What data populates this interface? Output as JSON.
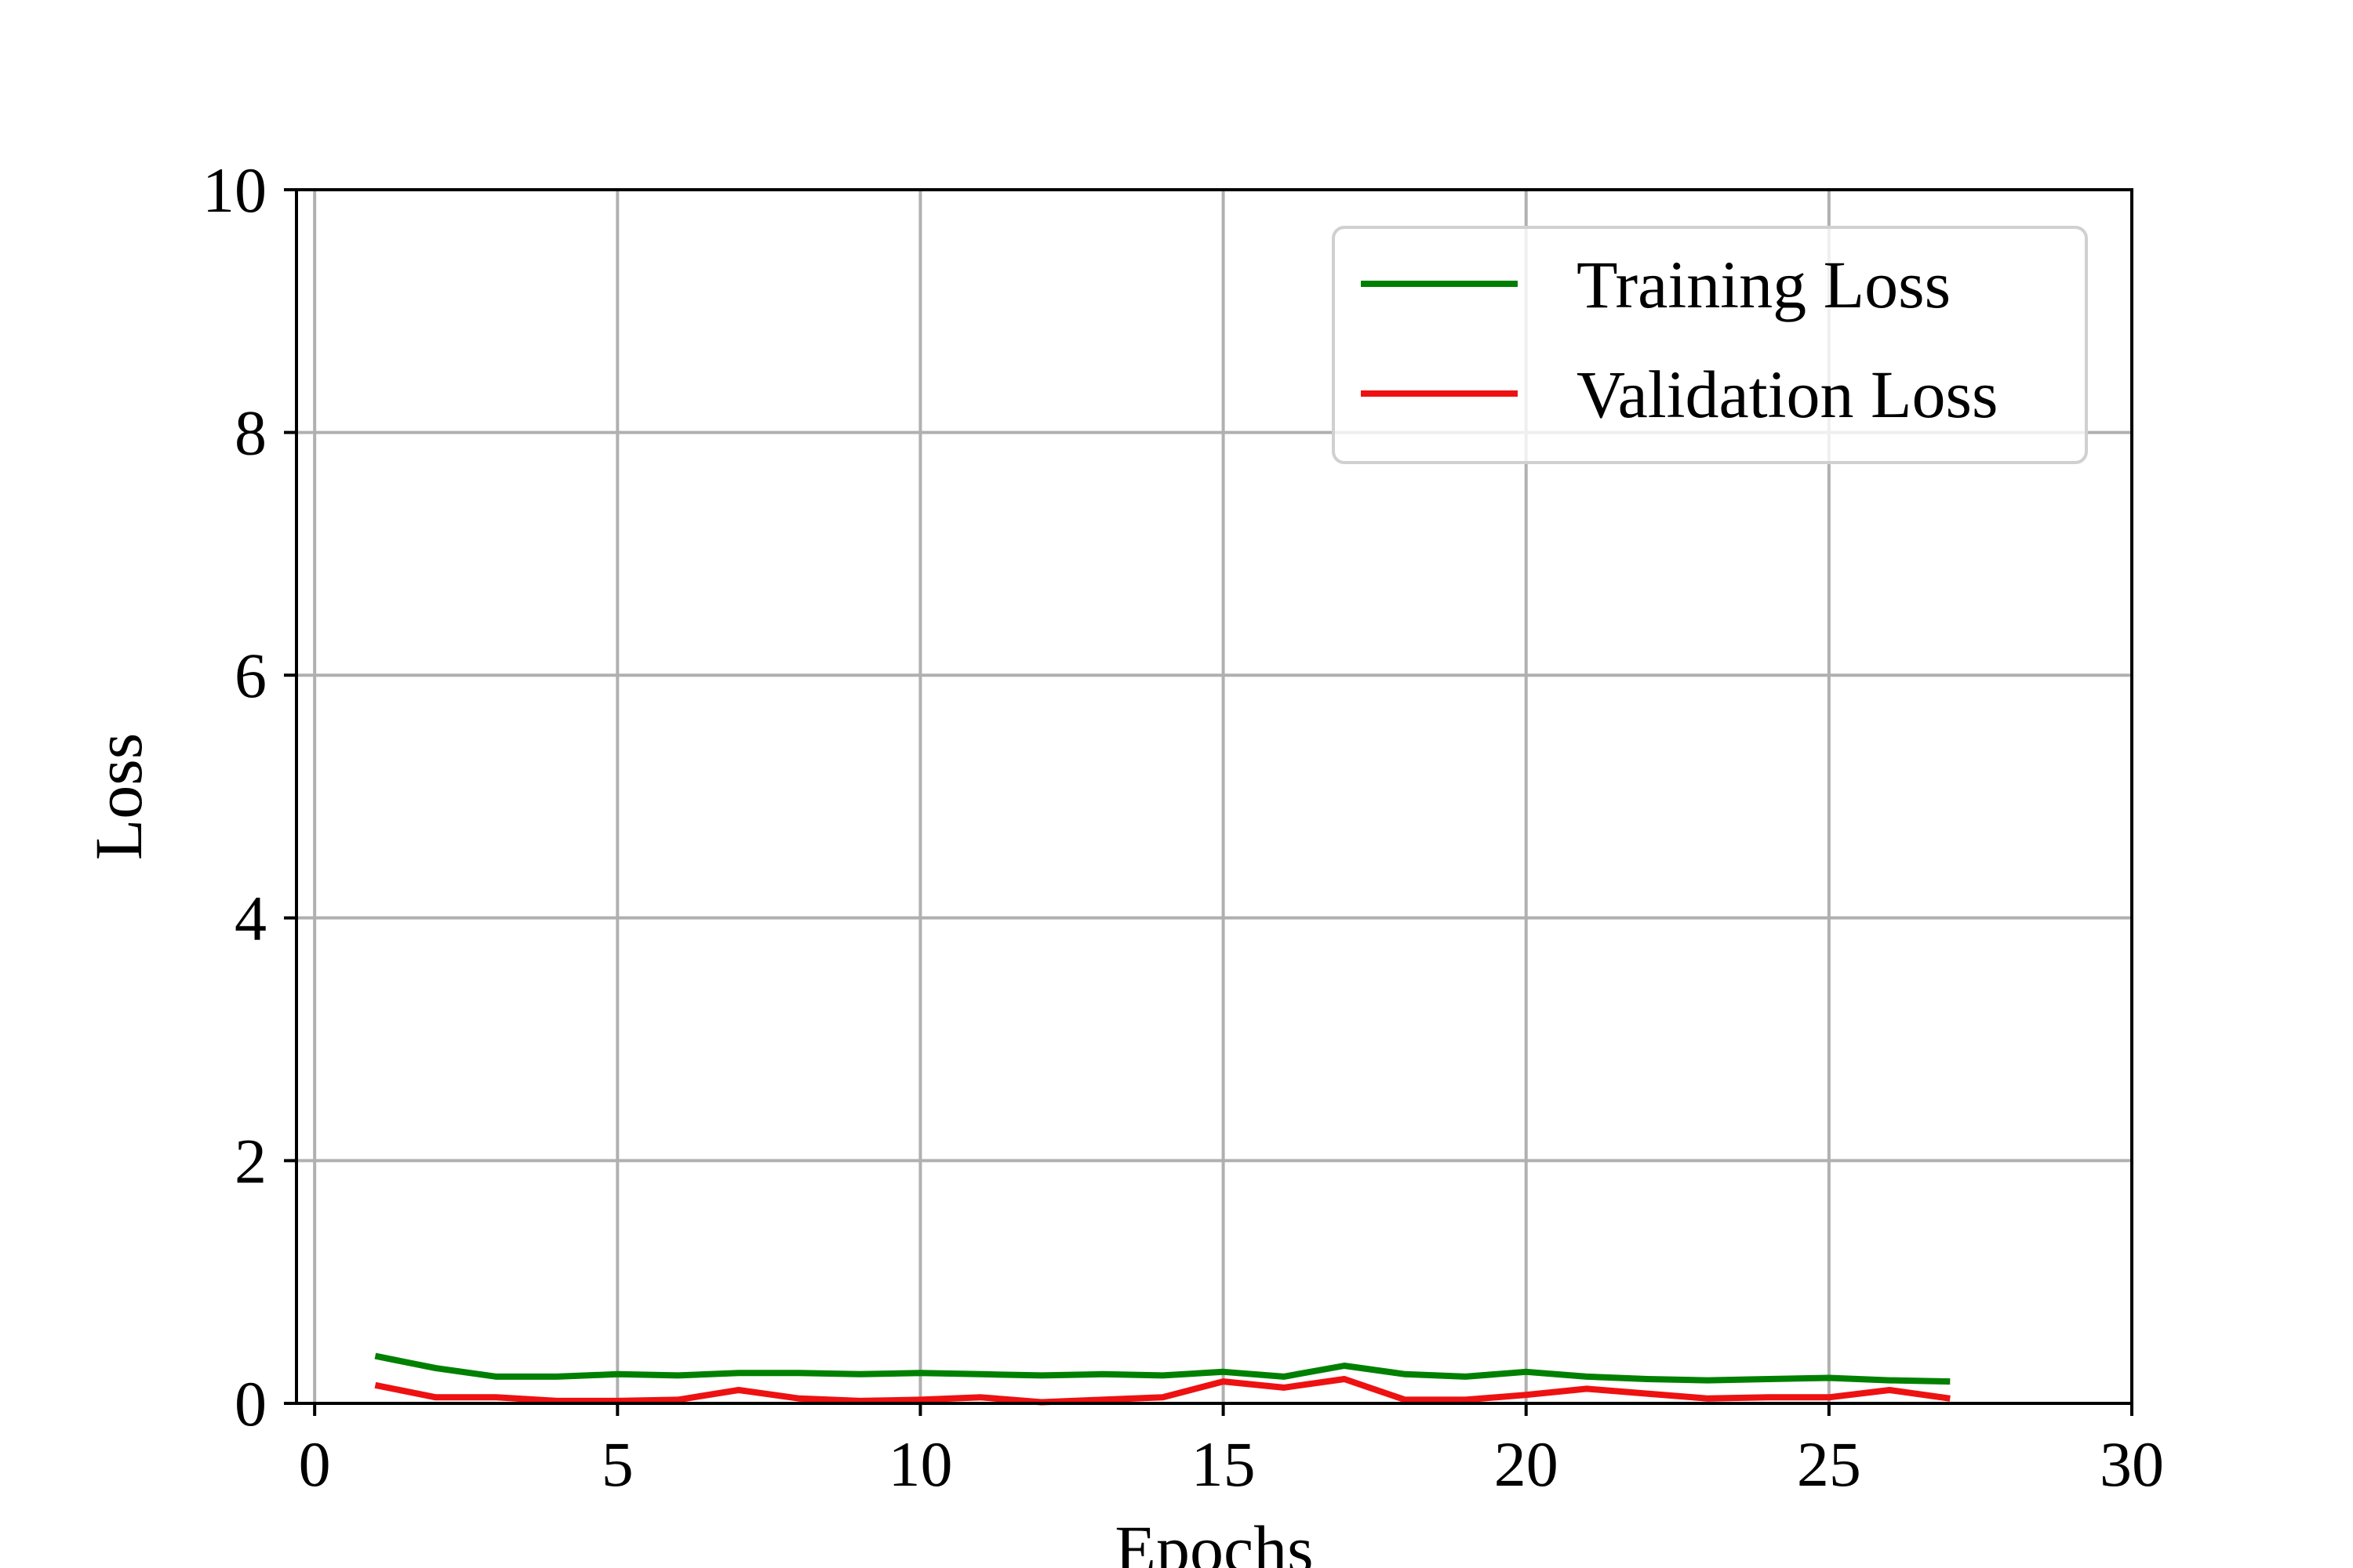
{
  "chart_data": {
    "type": "line",
    "xlabel": "Epochs",
    "ylabel": "Loss",
    "xlim": [
      -0.3,
      30
    ],
    "ylim": [
      0,
      10
    ],
    "xticks": [
      0,
      5,
      10,
      15,
      20,
      25,
      30
    ],
    "yticks": [
      0,
      2,
      4,
      6,
      8,
      10
    ],
    "grid": true,
    "legend_position": "top-right",
    "x": [
      1,
      2,
      3,
      4,
      5,
      6,
      7,
      8,
      9,
      10,
      11,
      12,
      13,
      14,
      15,
      16,
      17,
      18,
      19,
      20,
      21,
      22,
      23,
      24,
      25,
      26,
      27
    ],
    "series": [
      {
        "name": "Training Loss",
        "color": "#008000",
        "values": [
          0.39,
          0.29,
          0.22,
          0.22,
          0.24,
          0.23,
          0.25,
          0.25,
          0.24,
          0.25,
          0.24,
          0.23,
          0.24,
          0.23,
          0.26,
          0.22,
          0.31,
          0.24,
          0.22,
          0.26,
          0.22,
          0.2,
          0.19,
          0.2,
          0.21,
          0.19,
          0.18
        ]
      },
      {
        "name": "Validation Loss",
        "color": "#ee1111",
        "values": [
          0.15,
          0.05,
          0.05,
          0.02,
          0.02,
          0.03,
          0.11,
          0.04,
          0.02,
          0.03,
          0.05,
          0.01,
          0.03,
          0.05,
          0.18,
          0.13,
          0.2,
          0.03,
          0.03,
          0.07,
          0.12,
          0.08,
          0.04,
          0.05,
          0.05,
          0.11,
          0.04
        ]
      }
    ]
  }
}
